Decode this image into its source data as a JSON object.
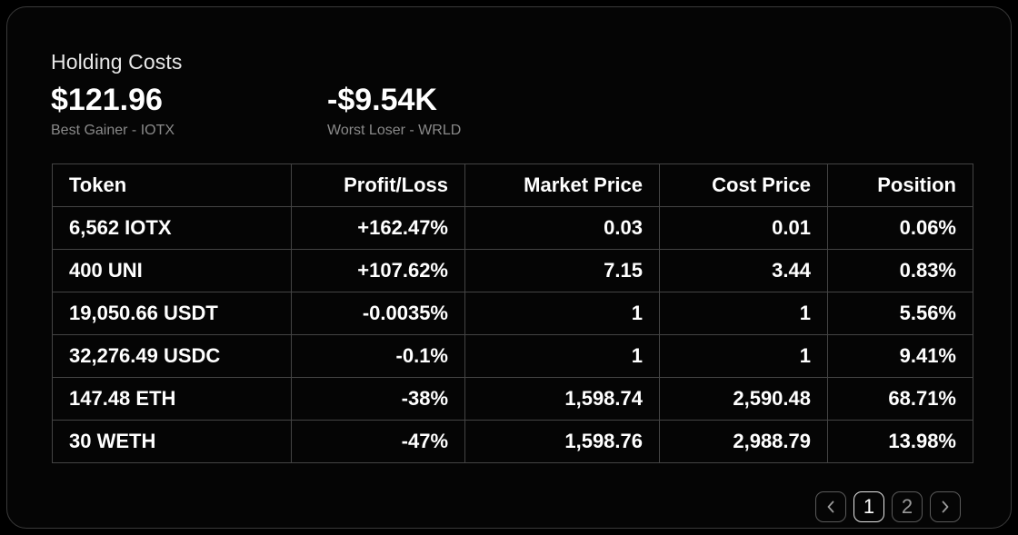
{
  "header": {
    "title": "Holding Costs"
  },
  "stats": {
    "best": {
      "value": "$121.96",
      "label": "Best Gainer - IOTX"
    },
    "worst": {
      "value": "-$9.54K",
      "label": "Worst Loser - WRLD"
    }
  },
  "table": {
    "columns": [
      "Token",
      "Profit/Loss",
      "Market Price",
      "Cost Price",
      "Position"
    ],
    "rows": [
      [
        "6,562 IOTX",
        "+162.47%",
        "0.03",
        "0.01",
        "0.06%"
      ],
      [
        "400 UNI",
        "+107.62%",
        "7.15",
        "3.44",
        "0.83%"
      ],
      [
        "19,050.66 USDT",
        "-0.0035%",
        "1",
        "1",
        "5.56%"
      ],
      [
        "32,276.49 USDC",
        "-0.1%",
        "1",
        "1",
        "9.41%"
      ],
      [
        "147.48 ETH",
        "-38%",
        "1,598.74",
        "2,590.48",
        "68.71%"
      ],
      [
        "30 WETH",
        "-47%",
        "1,598.76",
        "2,988.79",
        "13.98%"
      ]
    ]
  },
  "pagination": {
    "prev_icon": "chevron-left-icon",
    "next_icon": "chevron-right-icon",
    "pages": [
      "1",
      "2"
    ],
    "current": "1"
  }
}
